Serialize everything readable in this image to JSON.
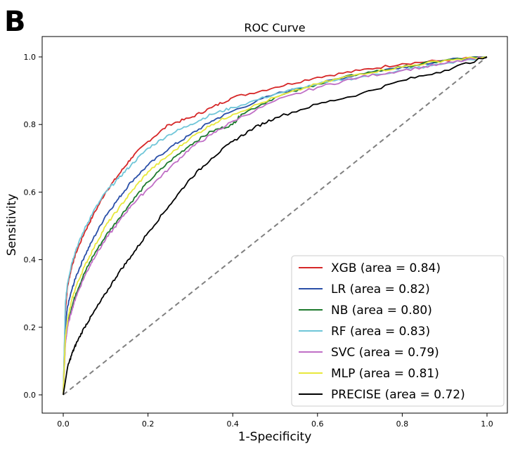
{
  "panel_letter": "B",
  "chart_data": {
    "type": "line",
    "title": "ROC Curve",
    "xlabel": "1-Specificity",
    "ylabel": "Sensitivity",
    "xlim": [
      0.0,
      1.0
    ],
    "ylim": [
      0.0,
      1.0
    ],
    "xticks": [
      "0.0",
      "0.2",
      "0.4",
      "0.6",
      "0.8",
      "1.0"
    ],
    "yticks": [
      "0.0",
      "0.2",
      "0.4",
      "0.6",
      "0.8",
      "1.0"
    ],
    "grid": false,
    "legend_position": "lower-right",
    "diagonal": {
      "x": [
        0,
        1
      ],
      "y": [
        0,
        1
      ],
      "color": "#808080",
      "style": "dashed"
    },
    "series": [
      {
        "name": "XGB (area = 0.84)",
        "color": "#d62728",
        "x": [
          0,
          0.005,
          0.01,
          0.02,
          0.03,
          0.05,
          0.07,
          0.1,
          0.13,
          0.16,
          0.2,
          0.25,
          0.3,
          0.35,
          0.4,
          0.5,
          0.6,
          0.7,
          0.8,
          0.9,
          1.0
        ],
        "y": [
          0,
          0.25,
          0.32,
          0.38,
          0.42,
          0.48,
          0.53,
          0.6,
          0.65,
          0.7,
          0.75,
          0.8,
          0.82,
          0.85,
          0.88,
          0.91,
          0.94,
          0.96,
          0.98,
          0.99,
          1.0
        ]
      },
      {
        "name": "LR (area = 0.82)",
        "color": "#2a4fa8",
        "x": [
          0,
          0.005,
          0.01,
          0.02,
          0.03,
          0.05,
          0.07,
          0.1,
          0.13,
          0.16,
          0.2,
          0.25,
          0.3,
          0.35,
          0.4,
          0.5,
          0.6,
          0.7,
          0.8,
          0.9,
          1.0
        ],
        "y": [
          0,
          0.2,
          0.26,
          0.31,
          0.35,
          0.41,
          0.46,
          0.53,
          0.58,
          0.63,
          0.68,
          0.73,
          0.77,
          0.81,
          0.84,
          0.89,
          0.92,
          0.95,
          0.97,
          0.99,
          1.0
        ]
      },
      {
        "name": "NB (area = 0.80)",
        "color": "#1e7a2e",
        "x": [
          0,
          0.005,
          0.01,
          0.02,
          0.03,
          0.05,
          0.07,
          0.1,
          0.13,
          0.16,
          0.2,
          0.25,
          0.3,
          0.35,
          0.4,
          0.42,
          0.5,
          0.6,
          0.7,
          0.8,
          0.9,
          1.0
        ],
        "y": [
          0,
          0.16,
          0.21,
          0.26,
          0.3,
          0.36,
          0.41,
          0.47,
          0.52,
          0.57,
          0.63,
          0.69,
          0.74,
          0.78,
          0.8,
          0.83,
          0.88,
          0.92,
          0.95,
          0.97,
          0.99,
          1.0
        ]
      },
      {
        "name": "RF (area = 0.83)",
        "color": "#6fc6d8",
        "x": [
          0,
          0.005,
          0.01,
          0.02,
          0.03,
          0.05,
          0.07,
          0.1,
          0.13,
          0.16,
          0.2,
          0.25,
          0.3,
          0.35,
          0.4,
          0.5,
          0.6,
          0.7,
          0.8,
          0.9,
          1.0
        ],
        "y": [
          0,
          0.27,
          0.33,
          0.39,
          0.43,
          0.49,
          0.54,
          0.6,
          0.64,
          0.68,
          0.73,
          0.77,
          0.8,
          0.83,
          0.85,
          0.89,
          0.92,
          0.94,
          0.96,
          0.98,
          1.0
        ]
      },
      {
        "name": "SVC (area = 0.79)",
        "color": "#c06fc6",
        "x": [
          0,
          0.005,
          0.01,
          0.02,
          0.03,
          0.05,
          0.07,
          0.1,
          0.13,
          0.16,
          0.2,
          0.25,
          0.3,
          0.35,
          0.4,
          0.5,
          0.6,
          0.7,
          0.8,
          0.9,
          1.0
        ],
        "y": [
          0,
          0.15,
          0.2,
          0.25,
          0.29,
          0.35,
          0.4,
          0.46,
          0.51,
          0.56,
          0.61,
          0.67,
          0.73,
          0.77,
          0.81,
          0.87,
          0.91,
          0.94,
          0.96,
          0.98,
          1.0
        ]
      },
      {
        "name": "MLP (area = 0.81)",
        "color": "#e8e83c",
        "x": [
          0,
          0.005,
          0.01,
          0.02,
          0.03,
          0.05,
          0.07,
          0.1,
          0.13,
          0.16,
          0.2,
          0.25,
          0.3,
          0.35,
          0.4,
          0.5,
          0.6,
          0.7,
          0.8,
          0.9,
          1.0
        ],
        "y": [
          0,
          0.17,
          0.22,
          0.28,
          0.32,
          0.38,
          0.43,
          0.5,
          0.55,
          0.6,
          0.66,
          0.71,
          0.76,
          0.8,
          0.83,
          0.88,
          0.92,
          0.95,
          0.97,
          0.99,
          1.0
        ]
      },
      {
        "name": "PRECISE (area = 0.72)",
        "color": "#000000",
        "x": [
          0,
          0.01,
          0.02,
          0.03,
          0.05,
          0.07,
          0.1,
          0.13,
          0.16,
          0.2,
          0.25,
          0.3,
          0.35,
          0.4,
          0.45,
          0.5,
          0.6,
          0.7,
          0.8,
          0.9,
          1.0
        ],
        "y": [
          0,
          0.08,
          0.12,
          0.15,
          0.2,
          0.24,
          0.3,
          0.36,
          0.41,
          0.48,
          0.56,
          0.64,
          0.7,
          0.75,
          0.79,
          0.82,
          0.86,
          0.89,
          0.93,
          0.96,
          1.0
        ]
      }
    ]
  }
}
